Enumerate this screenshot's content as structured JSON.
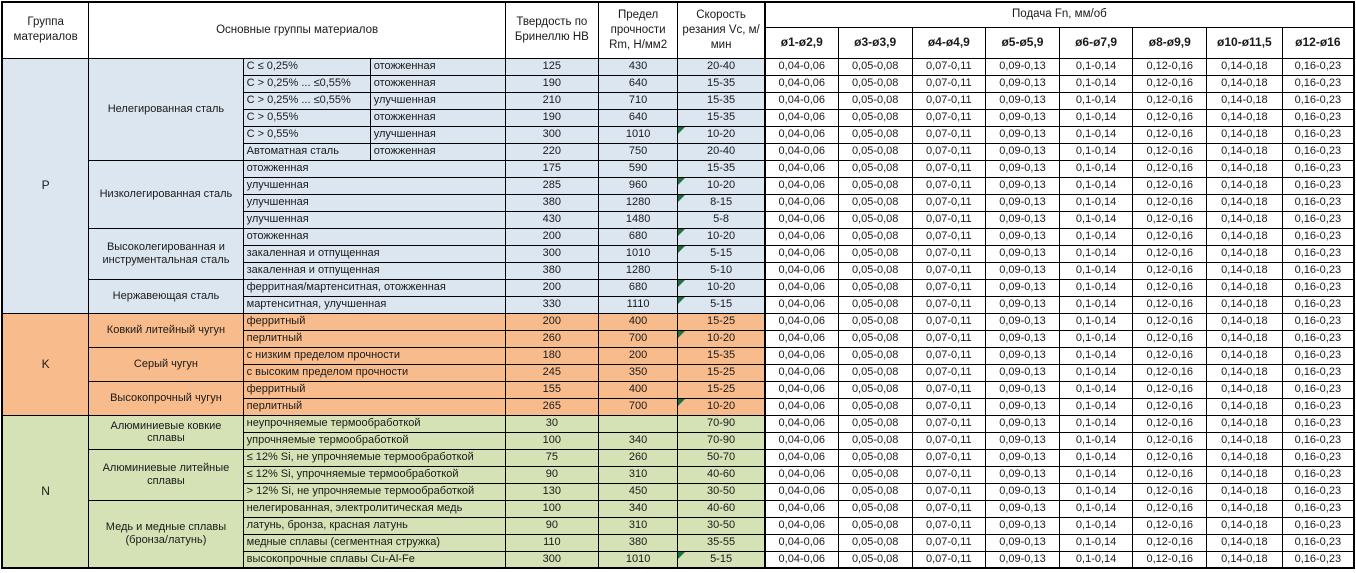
{
  "header": {
    "group": "Группа материалов",
    "main": "Основные группы материалов",
    "hb": "Твердость по Бринеллю HB",
    "rm": "Предел прочности Rm, Н/мм2",
    "vc": "Скорость резания Vc, м/мин",
    "feed": "Подача Fn, мм/об",
    "feed_cols": [
      "ø1-ø2,9",
      "ø3-ø3,9",
      "ø4-ø4,9",
      "ø5-ø5,9",
      "ø6-ø7,9",
      "ø8-ø9,9",
      "ø10-ø11,5",
      "ø12-ø16"
    ]
  },
  "feed_values": [
    "0,04-0,06",
    "0,05-0,08",
    "0,07-0,11",
    "0,09-0,13",
    "0,1-0,14",
    "0,12-0,16",
    "0,14-0,18",
    "0,16-0,23"
  ],
  "colors": {
    "group_p": "#DCE6F1",
    "group_k": "#F8BC8C",
    "group_n": "#D4E2B6",
    "flag_triangle": "#1E7145",
    "border": "#000000"
  },
  "groups": [
    {
      "code": "P",
      "key": "p",
      "subgroups": [
        {
          "name": "Нелегированная сталь",
          "rows": [
            {
              "c1": "C ≤ 0,25%",
              "c2": "отожженная",
              "hb": "125",
              "rm": "430",
              "vc": "20-40",
              "flag": false
            },
            {
              "c1": "C > 0,25% ... ≤0,55%",
              "c2": "отожженная",
              "hb": "190",
              "rm": "640",
              "vc": "15-35",
              "flag": false
            },
            {
              "c1": "C > 0,25% ... ≤0,55%",
              "c2": "улучшенная",
              "hb": "210",
              "rm": "710",
              "vc": "15-35",
              "flag": false
            },
            {
              "c1": "C > 0,55%",
              "c2": "отожженная",
              "hb": "190",
              "rm": "640",
              "vc": "15-35",
              "flag": false
            },
            {
              "c1": "C > 0,55%",
              "c2": "улучшенная",
              "hb": "300",
              "rm": "1010",
              "vc": "10-20",
              "flag": true
            },
            {
              "c1": "Автоматная сталь",
              "c2": "отожженная",
              "hb": "220",
              "rm": "750",
              "vc": "20-40",
              "flag": false
            }
          ]
        },
        {
          "name": "Низколегированная сталь",
          "rows": [
            {
              "c": "отожженная",
              "hb": "175",
              "rm": "590",
              "vc": "15-35",
              "flag": false
            },
            {
              "c": "улучшенная",
              "hb": "285",
              "rm": "960",
              "vc": "10-20",
              "flag": true
            },
            {
              "c": "улучшенная",
              "hb": "380",
              "rm": "1280",
              "vc": "8-15",
              "flag": true
            },
            {
              "c": "улучшенная",
              "hb": "430",
              "rm": "1480",
              "vc": "5-8",
              "flag": false
            }
          ]
        },
        {
          "name": "Высоколегированная и инструментальная сталь",
          "rows": [
            {
              "c": "отожженная",
              "hb": "200",
              "rm": "680",
              "vc": "10-20",
              "flag": true
            },
            {
              "c": "закаленная и отпущенная",
              "hb": "300",
              "rm": "1010",
              "vc": "5-15",
              "flag": true
            },
            {
              "c": "закаленная и отпущенная",
              "hb": "380",
              "rm": "1280",
              "vc": "5-10",
              "flag": false
            }
          ]
        },
        {
          "name": "Нержавеющая сталь",
          "rows": [
            {
              "c": "ферритная/мартенситная, отожженная",
              "hb": "200",
              "rm": "680",
              "vc": "10-20",
              "flag": true
            },
            {
              "c": "мартенситная, улучшенная",
              "hb": "330",
              "rm": "1110",
              "vc": "5-15",
              "flag": true
            }
          ]
        }
      ]
    },
    {
      "code": "K",
      "key": "k",
      "subgroups": [
        {
          "name": "Ковкий литейный чугун",
          "rows": [
            {
              "c": "ферритный",
              "hb": "200",
              "rm": "400",
              "vc": "15-25",
              "flag": false
            },
            {
              "c": "перлитный",
              "hb": "260",
              "rm": "700",
              "vc": "10-20",
              "flag": true
            }
          ]
        },
        {
          "name": "Серый чугун",
          "rows": [
            {
              "c": "с низким пределом прочности",
              "hb": "180",
              "rm": "200",
              "vc": "15-35",
              "flag": false
            },
            {
              "c": "с высоким пределом прочности",
              "hb": "245",
              "rm": "350",
              "vc": "15-25",
              "flag": false
            }
          ]
        },
        {
          "name": "Высокопрочный чугун",
          "rows": [
            {
              "c": "ферритный",
              "hb": "155",
              "rm": "400",
              "vc": "15-25",
              "flag": false
            },
            {
              "c": "перлитный",
              "hb": "265",
              "rm": "700",
              "vc": "10-20",
              "flag": true
            }
          ]
        }
      ]
    },
    {
      "code": "N",
      "key": "n",
      "subgroups": [
        {
          "name": "Алюминиевые ковкие сплавы",
          "rows": [
            {
              "c": "неупрочняемые термообработкой",
              "hb": "30",
              "rm": "",
              "vc": "70-90",
              "flag": false
            },
            {
              "c": "упрочняемые термообработкой",
              "hb": "100",
              "rm": "340",
              "vc": "70-90",
              "flag": false
            }
          ]
        },
        {
          "name": "Алюминиевые литейные сплавы",
          "rows": [
            {
              "c": "≤ 12% Si, не упрочняемые термообработкой",
              "hb": "75",
              "rm": "260",
              "vc": "50-70",
              "flag": false
            },
            {
              "c": "≤ 12% Si, упрочняемые термообработкой",
              "hb": "90",
              "rm": "310",
              "vc": "40-60",
              "flag": false
            },
            {
              "c": "> 12% Si, не упрочняемые термообработкой",
              "hb": "130",
              "rm": "450",
              "vc": "30-50",
              "flag": false
            }
          ]
        },
        {
          "name": "Медь и медные сплавы (бронза/латунь)",
          "rows": [
            {
              "c": "нелегированная, электролитическая медь",
              "hb": "100",
              "rm": "340",
              "vc": "40-60",
              "flag": false
            },
            {
              "c": "латунь, бронза, красная латунь",
              "hb": "90",
              "rm": "310",
              "vc": "30-50",
              "flag": false
            },
            {
              "c": "медные сплавы (сегментная стружка)",
              "hb": "110",
              "rm": "380",
              "vc": "35-55",
              "flag": false
            },
            {
              "c": "высокопрочные сплавы Cu-Al-Fe",
              "hb": "300",
              "rm": "1010",
              "vc": "5-15",
              "flag": true
            }
          ]
        }
      ]
    }
  ]
}
